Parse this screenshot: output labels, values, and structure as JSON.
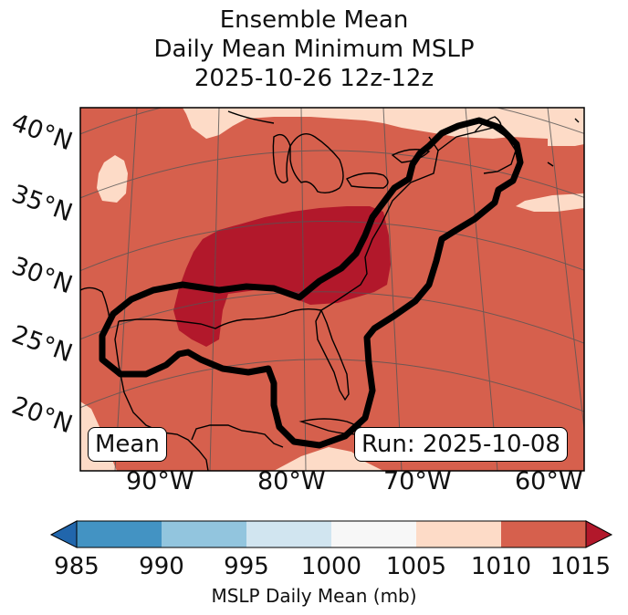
{
  "title": {
    "line1": "Ensemble Mean",
    "line2": "Daily Mean Minimum MSLP",
    "line3": "2025-10-26 12z-12z"
  },
  "map": {
    "lat_labels": [
      "40°N",
      "35°N",
      "30°N",
      "25°N",
      "20°N"
    ],
    "lon_labels": [
      "90°W",
      "80°W",
      "70°W",
      "60°W"
    ],
    "mean_box": "Mean",
    "run_box": "Run: 2025-10-08",
    "colors": {
      "c1005_1010": "#fddbc7",
      "c1010_1015": "#d6604d",
      "c_over": "#b2182b",
      "contour": "#000000",
      "coast": "#000000",
      "grid": "#555555"
    }
  },
  "colorbar": {
    "ticks": [
      "985",
      "990",
      "995",
      "1000",
      "1005",
      "1010",
      "1015"
    ],
    "colors": [
      "#2166ac",
      "#4393c3",
      "#92c5de",
      "#d1e5f0",
      "#f7f7f7",
      "#fddbc7",
      "#d6604d",
      "#b2182b"
    ],
    "label": "MSLP Daily Mean (mb)"
  }
}
